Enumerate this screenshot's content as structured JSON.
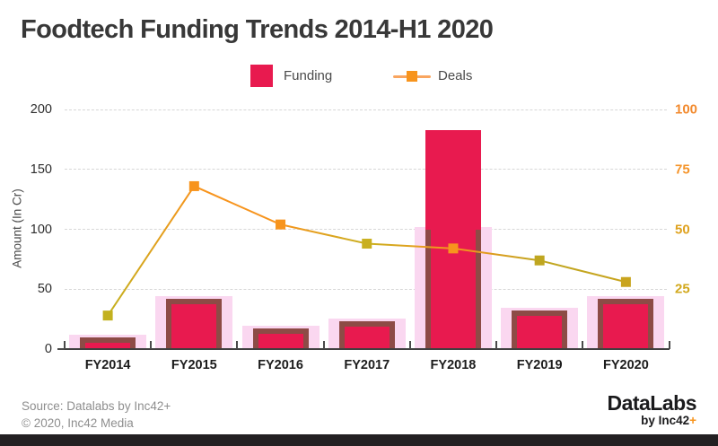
{
  "title": "Foodtech Funding Trends 2014-H1 2020",
  "legend": {
    "funding_label": "Funding",
    "deals_label": "Deals"
  },
  "footer": {
    "source_line1": "Source: Datalabs by Inc42+",
    "source_line2": "© 2020, Inc42 Media",
    "logo_title": "DataLabs",
    "logo_subtitle": "by Inc42",
    "logo_plus": "+"
  },
  "colors": {
    "bar": "#e81a4f",
    "bar_edge": "#8d4b46",
    "bar_glow": "#fad7f0",
    "line_orange": "#f7941d",
    "line_olive": "#bfae1e",
    "legend_line": "#f9a55f",
    "axis_line": "#3f3f3f",
    "gridline": "#d7d7d7",
    "right_tick_colors": [
      "#d2a81c",
      "#dfa21f",
      "#f5952b",
      "#f28a2e"
    ],
    "marker_colors": [
      "#c3b11e",
      "#f7941d",
      "#f7941d",
      "#c9b020",
      "#f7941d",
      "#bfa620",
      "#c9a41e"
    ]
  },
  "chart_data": {
    "type": "bar+line combo",
    "title": "Foodtech Funding Trends 2014-H1 2020",
    "categories": [
      "FY2014",
      "FY2015",
      "FY2016",
      "FY2017",
      "FY2018",
      "FY2019",
      "FY2020"
    ],
    "series": [
      {
        "name": "Funding",
        "type": "bar",
        "axis": "left",
        "values": [
          10,
          42,
          17,
          23,
          183,
          32,
          42
        ]
      },
      {
        "name": "Deals",
        "type": "line",
        "axis": "right",
        "values": [
          14,
          68,
          52,
          44,
          42,
          37,
          28
        ]
      }
    ],
    "ylabel_left": "Amount (In Cr)",
    "left_axis": {
      "ticks": [
        0,
        50,
        100,
        150,
        200
      ],
      "range": [
        0,
        200
      ]
    },
    "right_axis": {
      "ticks": [
        25,
        50,
        75,
        100
      ],
      "range": [
        0,
        100
      ]
    },
    "grid": "horizontal dashed",
    "legend_position": "top-center"
  }
}
